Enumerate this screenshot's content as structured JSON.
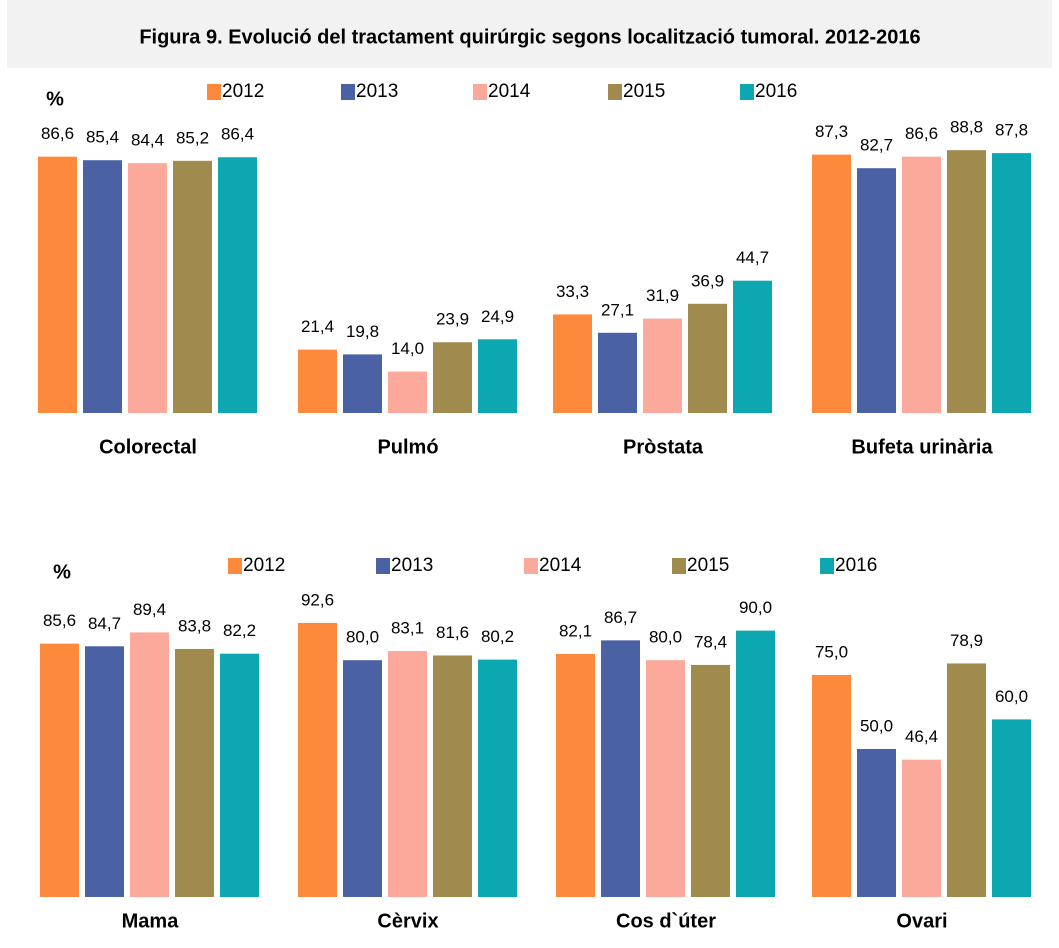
{
  "title": "Figura 9. Evolució del tractament quirúrgic segons localització tumoral. 2012-2016",
  "chart_data": [
    {
      "type": "bar",
      "y_label": "%",
      "ylim": [
        0,
        100
      ],
      "categories": [
        "Colorectal",
        "Pulmó",
        "Pròstata",
        "Bufeta urinària"
      ],
      "series": [
        {
          "name": "2012",
          "color": "#fd8a3c",
          "values": [
            86.6,
            21.4,
            33.3,
            87.3
          ],
          "value_labels": [
            "86,6",
            "21,4",
            "33,3",
            "87,3"
          ]
        },
        {
          "name": "2013",
          "color": "#4a62a4",
          "values": [
            85.4,
            19.8,
            27.1,
            82.7
          ],
          "value_labels": [
            "85,4",
            "19,8",
            "27,1",
            "82,7"
          ]
        },
        {
          "name": "2014",
          "color": "#fba99a",
          "values": [
            84.4,
            14.0,
            31.9,
            86.6
          ],
          "value_labels": [
            "84,4",
            "14,0",
            "31,9",
            "86,6"
          ]
        },
        {
          "name": "2015",
          "color": "#a18a4e",
          "values": [
            85.2,
            23.9,
            36.9,
            88.8
          ],
          "value_labels": [
            "85,2",
            "23,9",
            "36,9",
            "88,8"
          ]
        },
        {
          "name": "2016",
          "color": "#0ca7b0",
          "values": [
            86.4,
            24.9,
            44.7,
            87.8
          ],
          "value_labels": [
            "86,4",
            "24,9",
            "44,7",
            "87,8"
          ]
        }
      ]
    },
    {
      "type": "bar",
      "y_label": "%",
      "ylim": [
        0,
        100
      ],
      "categories": [
        "Mama",
        "Cèrvix",
        "Cos d`úter",
        "Ovari"
      ],
      "series": [
        {
          "name": "2012",
          "color": "#fd8a3c",
          "values": [
            85.6,
            92.6,
            82.1,
            75.0
          ],
          "value_labels": [
            "85,6",
            "92,6",
            "82,1",
            "75,0"
          ]
        },
        {
          "name": "2013",
          "color": "#4a62a4",
          "values": [
            84.7,
            80.0,
            86.7,
            50.0
          ],
          "value_labels": [
            "84,7",
            "80,0",
            "86,7",
            "50,0"
          ]
        },
        {
          "name": "2014",
          "color": "#fba99a",
          "values": [
            89.4,
            83.1,
            80.0,
            46.4
          ],
          "value_labels": [
            "89,4",
            "83,1",
            "80,0",
            "46,4"
          ]
        },
        {
          "name": "2015",
          "color": "#a18a4e",
          "values": [
            83.8,
            81.6,
            78.4,
            78.9
          ],
          "value_labels": [
            "83,8",
            "81,6",
            "78,4",
            "78,9"
          ]
        },
        {
          "name": "2016",
          "color": "#0ca7b0",
          "values": [
            82.2,
            80.2,
            90.0,
            60.0
          ],
          "value_labels": [
            "82,2",
            "80,2",
            "90,0",
            "60,0"
          ]
        }
      ]
    }
  ]
}
